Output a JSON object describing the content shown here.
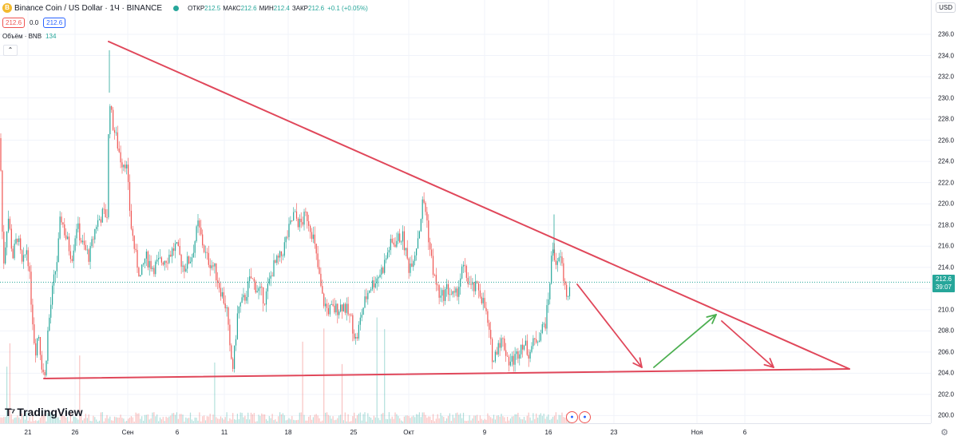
{
  "header": {
    "symbol_title": "Binance Coin / US Dollar · 1Ч · BINANCE",
    "coin_icon": "bnb-coin-icon",
    "ohlc": [
      {
        "label": "ОТКР",
        "value": "212.5"
      },
      {
        "label": "МАКС",
        "value": "212.6"
      },
      {
        "label": "МИН",
        "value": "212.4"
      },
      {
        "label": "ЗАКР",
        "value": "212.6"
      },
      {
        "label": "",
        "value": "+0.1 (+0.05%)"
      }
    ]
  },
  "trade": {
    "sell_price": "212.6",
    "spread": "0.0",
    "buy_price": "212.6"
  },
  "volume": {
    "label": "Объём · BNB",
    "value": "134"
  },
  "collapse_icon": "chevron-up-icon",
  "logo_text": "TradingView",
  "price_axis": {
    "currency": "USD",
    "ticks": [
      "236.0",
      "234.0",
      "232.0",
      "230.0",
      "228.0",
      "226.0",
      "224.0",
      "222.0",
      "220.0",
      "218.0",
      "216.0",
      "214.0",
      "212.0",
      "210.0",
      "208.0",
      "206.0",
      "204.0",
      "202.0",
      "200.0"
    ],
    "current_price": "212.6",
    "countdown": "39:07"
  },
  "time_axis": {
    "ticks": [
      "21",
      "26",
      "Сен",
      "6",
      "11",
      "18",
      "25",
      "Окт",
      "9",
      "16",
      "23",
      "Ноя",
      "6"
    ]
  },
  "settings_icon": "gear-icon",
  "colors": {
    "up": "#26a69a",
    "down": "#ef5350",
    "trendline": "#e0475a",
    "arrow_up": "#4caf50"
  },
  "chart_data": {
    "type": "candlestick",
    "price_range": [
      199.5,
      237.0
    ],
    "current_price": 212.6,
    "path": [
      [
        0,
        226.2
      ],
      [
        4,
        214
      ],
      [
        10,
        219
      ],
      [
        16,
        215
      ],
      [
        22,
        217
      ],
      [
        28,
        214
      ],
      [
        34,
        216
      ],
      [
        40,
        210
      ],
      [
        44,
        206
      ],
      [
        48,
        208
      ],
      [
        52,
        205
      ],
      [
        56,
        203.5
      ],
      [
        60,
        208
      ],
      [
        66,
        212
      ],
      [
        72,
        215
      ],
      [
        76,
        219
      ],
      [
        82,
        217
      ],
      [
        90,
        215
      ],
      [
        96,
        218
      ],
      [
        104,
        216
      ],
      [
        112,
        215
      ],
      [
        120,
        218
      ],
      [
        128,
        219
      ],
      [
        134,
        219
      ],
      [
        137,
        230.5
      ],
      [
        140,
        228
      ],
      [
        146,
        226
      ],
      [
        152,
        224
      ],
      [
        158,
        224
      ],
      [
        164,
        218
      ],
      [
        170,
        215
      ],
      [
        176,
        213
      ],
      [
        182,
        215
      ],
      [
        192,
        214
      ],
      [
        200,
        214.5
      ],
      [
        210,
        215
      ],
      [
        220,
        216
      ],
      [
        230,
        214
      ],
      [
        240,
        215
      ],
      [
        248,
        218
      ],
      [
        258,
        215
      ],
      [
        268,
        214
      ],
      [
        276,
        212
      ],
      [
        284,
        210
      ],
      [
        288,
        206
      ],
      [
        292,
        204.5
      ],
      [
        298,
        210
      ],
      [
        306,
        211
      ],
      [
        314,
        213
      ],
      [
        322,
        212
      ],
      [
        332,
        211
      ],
      [
        342,
        214
      ],
      [
        352,
        215
      ],
      [
        360,
        217
      ],
      [
        368,
        219
      ],
      [
        376,
        218
      ],
      [
        384,
        219
      ],
      [
        392,
        217
      ],
      [
        398,
        214
      ],
      [
        404,
        211
      ],
      [
        410,
        210
      ],
      [
        420,
        210
      ],
      [
        430,
        210.5
      ],
      [
        440,
        209
      ],
      [
        446,
        207
      ],
      [
        454,
        210
      ],
      [
        462,
        212
      ],
      [
        472,
        213
      ],
      [
        480,
        214
      ],
      [
        488,
        216
      ],
      [
        496,
        216.5
      ],
      [
        504,
        217
      ],
      [
        512,
        214
      ],
      [
        520,
        215.5
      ],
      [
        526,
        218
      ],
      [
        530,
        220.5
      ],
      [
        534,
        219
      ],
      [
        538,
        216
      ],
      [
        544,
        213
      ],
      [
        552,
        211
      ],
      [
        560,
        212
      ],
      [
        570,
        211
      ],
      [
        580,
        214
      ],
      [
        590,
        212
      ],
      [
        600,
        212
      ],
      [
        608,
        210
      ],
      [
        614,
        207
      ],
      [
        618,
        205
      ],
      [
        624,
        207
      ],
      [
        630,
        207
      ],
      [
        638,
        205
      ],
      [
        646,
        205.5
      ],
      [
        654,
        207
      ],
      [
        662,
        206
      ],
      [
        670,
        207
      ],
      [
        678,
        208
      ],
      [
        684,
        209
      ],
      [
        688,
        212
      ],
      [
        692,
        216
      ],
      [
        698,
        214
      ],
      [
        702,
        215
      ],
      [
        708,
        212
      ],
      [
        712,
        211
      ],
      [
        715,
        212.6
      ]
    ],
    "wicks": [
      [
        137,
        234.5
      ],
      [
        694,
        219
      ]
    ],
    "annotations": {
      "resistance_line": {
        "start": [
          "Aug 30",
          234.8
        ],
        "end": [
          "Nov 15",
          204.3
        ]
      },
      "support_line": {
        "start": [
          "Aug 22",
          203.4
        ],
        "end": [
          "Nov 15",
          204.3
        ]
      },
      "arrows": [
        {
          "color": "red",
          "from": 212.0,
          "to": 204.5
        },
        {
          "color": "green",
          "from": 204.5,
          "to": 209.5
        },
        {
          "color": "red",
          "from": 209.0,
          "to": 204.5
        }
      ]
    }
  }
}
